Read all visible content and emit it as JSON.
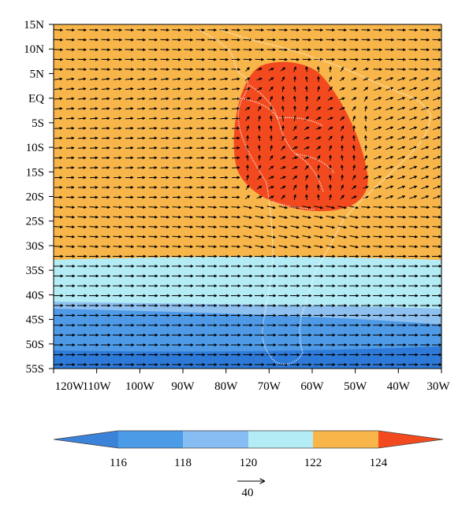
{
  "map": {
    "lat_labels": [
      "15N",
      "10N",
      "5N",
      "EQ",
      "5S",
      "10S",
      "15S",
      "20S",
      "25S",
      "30S",
      "35S",
      "40S",
      "45S",
      "50S",
      "55S"
    ],
    "lon_labels": [
      "120W",
      "110W",
      "100W",
      "90W",
      "80W",
      "70W",
      "60W",
      "50W",
      "40W",
      "30W"
    ],
    "fill_colors": {
      "high": "#f24a1e",
      "mid": "#f8b64a",
      "light": "#b4ecf6",
      "blue1": "#8ec0f0",
      "blue2": "#4e9ae6",
      "blue3": "#2e7ad8"
    },
    "coastline_color": "#ffffff",
    "vector_color": "#000000"
  },
  "colorbar": {
    "labels": [
      "116",
      "118",
      "120",
      "122",
      "124"
    ],
    "colors": [
      "#3b82d9",
      "#4b9be6",
      "#86bdf2",
      "#b4ecf6",
      "#f8b64a",
      "#f24a1e"
    ]
  },
  "reference_vector": {
    "value": "40"
  }
}
